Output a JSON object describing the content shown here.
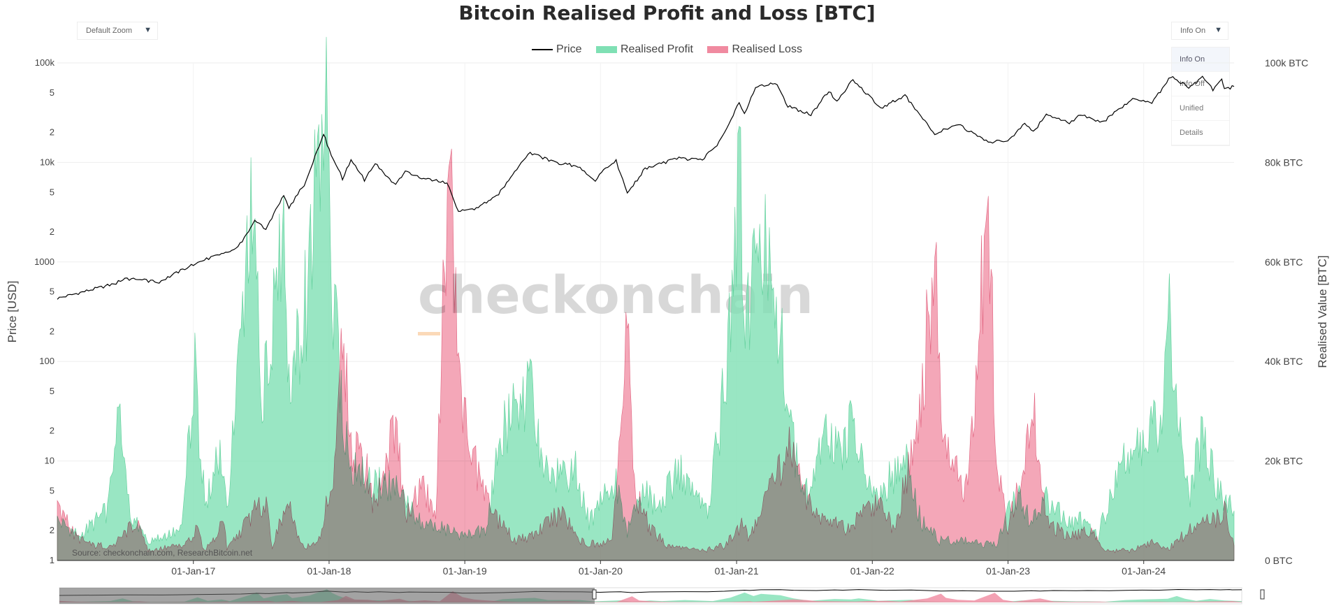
{
  "header": {
    "title": "Bitcoin Realised Profit and Loss [BTC]",
    "zoom_dropdown": "Default Zoom",
    "info_dropdown": "Info On",
    "info_menu": [
      "Info On",
      "Info Off",
      "Unified",
      "Details"
    ]
  },
  "source_note": "Source: checkonchain.com, ResearchBitcoin.net",
  "watermark": "checkonchain",
  "chart_data": {
    "type": "area",
    "title": "Bitcoin Realised Profit and Loss [BTC]",
    "ylabel_left": "Price [USD]",
    "ylabel_right": "Realised Value [BTC]",
    "y_left_scale": "log",
    "y_left_range": [
      1,
      100000
    ],
    "y_left_ticks": [
      "1",
      "2",
      "5",
      "10",
      "2",
      "5",
      "100",
      "2",
      "5",
      "1000",
      "2",
      "5",
      "10k",
      "2",
      "5",
      "100k"
    ],
    "y_right_range": [
      0,
      100000
    ],
    "y_right_ticks": [
      "0 BTC",
      "20k BTC",
      "40k BTC",
      "60k BTC",
      "80k BTC",
      "100k BTC"
    ],
    "x_range": [
      "2016-01-01",
      "2024-08-31"
    ],
    "x_ticks": [
      "01-Jan-17",
      "01-Jan-18",
      "01-Jan-19",
      "01-Jan-20",
      "01-Jan-21",
      "01-Jan-22",
      "01-Jan-23",
      "01-Jan-24"
    ],
    "grid": true,
    "legend_position": "top-center",
    "series": [
      {
        "name": "Price",
        "axis": "left",
        "color": "#000000",
        "points": [
          [
            "2016-01-01",
            430
          ],
          [
            "2016-06-01",
            600
          ],
          [
            "2016-07-01",
            680
          ],
          [
            "2016-10-01",
            630
          ],
          [
            "2017-01-01",
            950
          ],
          [
            "2017-03-01",
            1150
          ],
          [
            "2017-05-01",
            1400
          ],
          [
            "2017-06-15",
            2600
          ],
          [
            "2017-07-15",
            2100
          ],
          [
            "2017-09-01",
            4700
          ],
          [
            "2017-09-15",
            3500
          ],
          [
            "2017-11-01",
            6500
          ],
          [
            "2017-12-17",
            19500
          ],
          [
            "2018-01-01",
            13500
          ],
          [
            "2018-02-06",
            6900
          ],
          [
            "2018-03-01",
            10500
          ],
          [
            "2018-04-06",
            6700
          ],
          [
            "2018-05-05",
            9800
          ],
          [
            "2018-06-29",
            5900
          ],
          [
            "2018-07-25",
            8400
          ],
          [
            "2018-09-01",
            7000
          ],
          [
            "2018-11-14",
            6200
          ],
          [
            "2018-12-15",
            3200
          ],
          [
            "2019-02-01",
            3450
          ],
          [
            "2019-04-02",
            4800
          ],
          [
            "2019-05-15",
            8000
          ],
          [
            "2019-06-26",
            12500
          ],
          [
            "2019-09-01",
            10000
          ],
          [
            "2019-11-01",
            9200
          ],
          [
            "2019-12-18",
            6600
          ],
          [
            "2020-01-15",
            8700
          ],
          [
            "2020-02-12",
            10300
          ],
          [
            "2020-03-13",
            4900
          ],
          [
            "2020-04-30",
            8700
          ],
          [
            "2020-06-01",
            9500
          ],
          [
            "2020-07-30",
            11000
          ],
          [
            "2020-10-01",
            10600
          ],
          [
            "2020-11-15",
            16000
          ],
          [
            "2021-01-08",
            40000
          ],
          [
            "2021-01-22",
            31000
          ],
          [
            "2021-02-21",
            57000
          ],
          [
            "2021-04-14",
            64000
          ],
          [
            "2021-05-19",
            37000
          ],
          [
            "2021-07-20",
            30000
          ],
          [
            "2021-09-06",
            52000
          ],
          [
            "2021-09-28",
            41000
          ],
          [
            "2021-11-10",
            68000
          ],
          [
            "2022-01-24",
            35000
          ],
          [
            "2022-03-30",
            47000
          ],
          [
            "2022-05-12",
            29000
          ],
          [
            "2022-06-18",
            19000
          ],
          [
            "2022-08-15",
            24500
          ],
          [
            "2022-11-09",
            16000
          ],
          [
            "2022-12-31",
            16500
          ],
          [
            "2023-02-15",
            24500
          ],
          [
            "2023-03-10",
            20000
          ],
          [
            "2023-04-14",
            30500
          ],
          [
            "2023-06-15",
            25000
          ],
          [
            "2023-07-15",
            30300
          ],
          [
            "2023-09-11",
            25000
          ],
          [
            "2023-10-25",
            34500
          ],
          [
            "2023-12-08",
            44000
          ],
          [
            "2024-01-23",
            39500
          ],
          [
            "2024-03-14",
            73000
          ],
          [
            "2024-05-01",
            57000
          ],
          [
            "2024-06-07",
            71000
          ],
          [
            "2024-07-05",
            54000
          ],
          [
            "2024-07-29",
            69000
          ],
          [
            "2024-08-05",
            54000
          ],
          [
            "2024-08-31",
            58000
          ]
        ]
      },
      {
        "name": "Realised Profit",
        "axis": "right",
        "color": "#7fe0b4",
        "fill_opacity": 0.8,
        "points": [
          [
            "2016-01-01",
            8000
          ],
          [
            "2016-03-01",
            5000
          ],
          [
            "2016-05-15",
            10000
          ],
          [
            "2016-06-18",
            30000
          ],
          [
            "2016-07-15",
            9000
          ],
          [
            "2016-09-01",
            4000
          ],
          [
            "2016-12-01",
            6000
          ],
          [
            "2017-01-05",
            38000
          ],
          [
            "2017-02-01",
            12000
          ],
          [
            "2017-03-10",
            22000
          ],
          [
            "2017-04-01",
            10000
          ],
          [
            "2017-05-25",
            56000
          ],
          [
            "2017-06-12",
            75000
          ],
          [
            "2017-07-01",
            30000
          ],
          [
            "2017-08-01",
            50000
          ],
          [
            "2017-09-01",
            62000
          ],
          [
            "2017-09-15",
            32000
          ],
          [
            "2017-11-01",
            52000
          ],
          [
            "2017-12-08",
            90000
          ],
          [
            "2017-12-17",
            100000
          ],
          [
            "2018-01-01",
            70000
          ],
          [
            "2018-01-16",
            50000
          ],
          [
            "2018-02-06",
            30000
          ],
          [
            "2018-03-01",
            18000
          ],
          [
            "2018-05-01",
            16000
          ],
          [
            "2018-07-01",
            14000
          ],
          [
            "2018-09-01",
            8000
          ],
          [
            "2018-11-15",
            6000
          ],
          [
            "2019-01-01",
            5000
          ],
          [
            "2019-03-01",
            6000
          ],
          [
            "2019-04-02",
            24000
          ],
          [
            "2019-05-15",
            30000
          ],
          [
            "2019-06-26",
            34000
          ],
          [
            "2019-08-01",
            18000
          ],
          [
            "2019-10-26",
            18000
          ],
          [
            "2019-12-01",
            8000
          ],
          [
            "2020-02-12",
            16000
          ],
          [
            "2020-03-13",
            6000
          ],
          [
            "2020-05-01",
            14000
          ],
          [
            "2020-06-01",
            10000
          ],
          [
            "2020-08-01",
            18000
          ],
          [
            "2020-10-15",
            10000
          ],
          [
            "2020-12-01",
            36000
          ],
          [
            "2021-01-08",
            74000
          ],
          [
            "2021-02-01",
            48000
          ],
          [
            "2021-02-21",
            64000
          ],
          [
            "2021-04-14",
            54000
          ],
          [
            "2021-05-19",
            30000
          ],
          [
            "2021-07-01",
            12000
          ],
          [
            "2021-09-06",
            26000
          ],
          [
            "2021-10-20",
            22000
          ],
          [
            "2021-11-10",
            30000
          ],
          [
            "2022-01-01",
            12000
          ],
          [
            "2022-03-30",
            20000
          ],
          [
            "2022-05-12",
            8000
          ],
          [
            "2022-07-01",
            4000
          ],
          [
            "2022-09-01",
            4000
          ],
          [
            "2022-12-01",
            3000
          ],
          [
            "2023-01-20",
            14000
          ],
          [
            "2023-03-01",
            8000
          ],
          [
            "2023-04-14",
            12000
          ],
          [
            "2023-06-15",
            8000
          ],
          [
            "2023-07-15",
            8000
          ],
          [
            "2023-09-01",
            5000
          ],
          [
            "2023-10-25",
            18000
          ],
          [
            "2023-12-08",
            22000
          ],
          [
            "2024-01-10",
            24000
          ],
          [
            "2024-02-15",
            28000
          ],
          [
            "2024-03-10",
            48000
          ],
          [
            "2024-04-01",
            28000
          ],
          [
            "2024-05-01",
            12000
          ],
          [
            "2024-06-07",
            26000
          ],
          [
            "2024-07-15",
            14000
          ],
          [
            "2024-08-31",
            10000
          ]
        ]
      },
      {
        "name": "Realised Loss",
        "axis": "right",
        "color": "#f08aa0",
        "fill_opacity": 0.75,
        "points": [
          [
            "2016-01-01",
            12000
          ],
          [
            "2016-02-15",
            5000
          ],
          [
            "2016-04-01",
            3000
          ],
          [
            "2016-06-01",
            3000
          ],
          [
            "2016-08-02",
            8000
          ],
          [
            "2016-09-01",
            2000
          ],
          [
            "2016-12-01",
            3000
          ],
          [
            "2017-01-11",
            6000
          ],
          [
            "2017-02-01",
            2000
          ],
          [
            "2017-03-25",
            8000
          ],
          [
            "2017-04-01",
            2000
          ],
          [
            "2017-06-15",
            10000
          ],
          [
            "2017-07-16",
            12000
          ],
          [
            "2017-08-01",
            3000
          ],
          [
            "2017-09-15",
            12000
          ],
          [
            "2017-10-15",
            3000
          ],
          [
            "2017-12-01",
            3000
          ],
          [
            "2018-01-16",
            18000
          ],
          [
            "2018-02-06",
            49000
          ],
          [
            "2018-03-01",
            22000
          ],
          [
            "2018-04-06",
            20000
          ],
          [
            "2018-05-05",
            10000
          ],
          [
            "2018-06-29",
            28000
          ],
          [
            "2018-07-25",
            8000
          ],
          [
            "2018-09-05",
            16000
          ],
          [
            "2018-10-15",
            8000
          ],
          [
            "2018-11-19",
            84000
          ],
          [
            "2018-12-15",
            40000
          ],
          [
            "2019-01-15",
            22000
          ],
          [
            "2019-02-15",
            15000
          ],
          [
            "2019-04-01",
            8000
          ],
          [
            "2019-05-15",
            4000
          ],
          [
            "2019-07-01",
            5000
          ],
          [
            "2019-09-24",
            10000
          ],
          [
            "2019-11-01",
            4000
          ],
          [
            "2020-01-01",
            3000
          ],
          [
            "2020-02-01",
            4000
          ],
          [
            "2020-03-13",
            46000
          ],
          [
            "2020-04-01",
            14000
          ],
          [
            "2020-05-15",
            6000
          ],
          [
            "2020-07-01",
            3000
          ],
          [
            "2020-10-01",
            2000
          ],
          [
            "2020-12-01",
            3000
          ],
          [
            "2021-01-22",
            8000
          ],
          [
            "2021-02-01",
            4000
          ],
          [
            "2021-05-19",
            22000
          ],
          [
            "2021-06-22",
            18000
          ],
          [
            "2021-07-20",
            10000
          ],
          [
            "2021-09-07",
            8000
          ],
          [
            "2021-11-01",
            6000
          ],
          [
            "2021-12-04",
            10000
          ],
          [
            "2022-01-24",
            12000
          ],
          [
            "2022-03-01",
            6000
          ],
          [
            "2022-05-12",
            30000
          ],
          [
            "2022-06-18",
            66000
          ],
          [
            "2022-07-01",
            34000
          ],
          [
            "2022-08-01",
            20000
          ],
          [
            "2022-09-15",
            14000
          ],
          [
            "2022-11-09",
            72000
          ],
          [
            "2022-12-01",
            20000
          ],
          [
            "2023-01-01",
            6000
          ],
          [
            "2023-03-10",
            30000
          ],
          [
            "2023-04-15",
            8000
          ],
          [
            "2023-06-01",
            5000
          ],
          [
            "2023-08-17",
            6000
          ],
          [
            "2023-09-15",
            2000
          ],
          [
            "2023-12-01",
            2000
          ],
          [
            "2024-01-23",
            4000
          ],
          [
            "2024-03-01",
            2000
          ],
          [
            "2024-05-01",
            6000
          ],
          [
            "2024-07-05",
            8000
          ],
          [
            "2024-08-05",
            10000
          ],
          [
            "2024-08-31",
            3000
          ]
        ]
      }
    ]
  }
}
